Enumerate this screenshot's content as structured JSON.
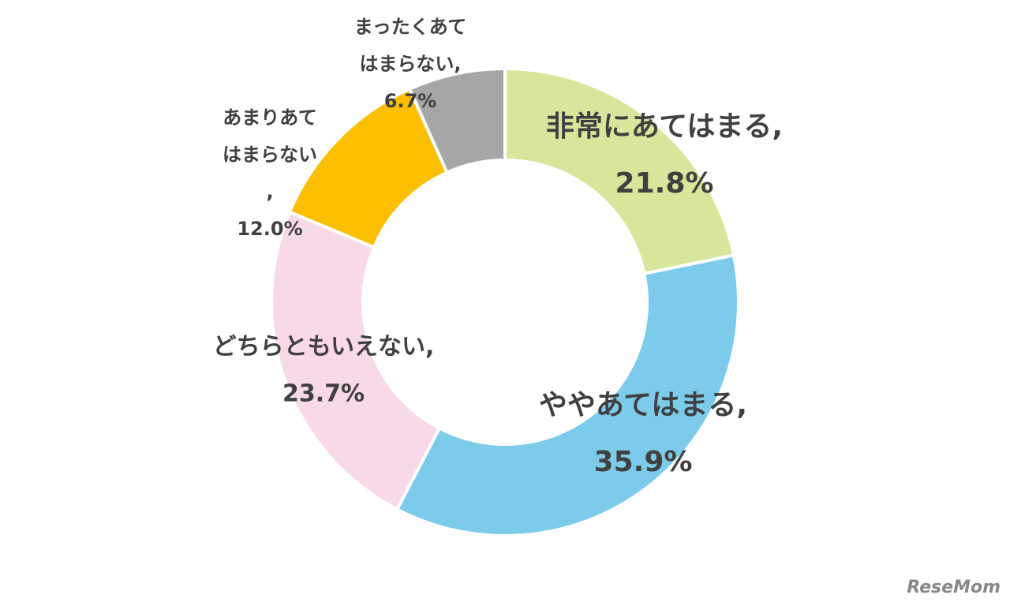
{
  "chart_data": {
    "type": "donut",
    "categories": [
      "非常にあてはまる,",
      "ややあてはまる,",
      "どちらともいえない,",
      "あまりあてはまらない,",
      "まったくあてはまらない,"
    ],
    "values": [
      21.8,
      35.9,
      23.7,
      12.0,
      6.7
    ],
    "value_labels": [
      "21.8%",
      "35.9%",
      "23.7%",
      "12.0%",
      "6.7%"
    ],
    "colors": [
      "#d8e69b",
      "#7ccbea",
      "#f8d9e8",
      "#fbbf00",
      "#a6a6a6"
    ]
  },
  "watermark": "ReseMom"
}
